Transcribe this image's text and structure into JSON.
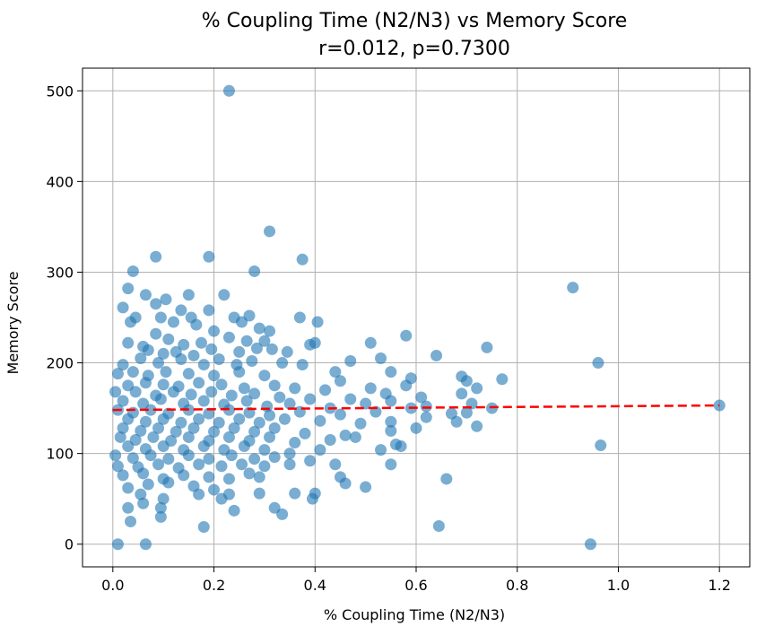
{
  "chart_data": {
    "type": "scatter",
    "title": "% Coupling Time (N2/N3) vs Memory Score",
    "subtitle": "r=0.012, p=0.7300",
    "xlabel": "% Coupling Time (N2/N3)",
    "ylabel": "Memory Score",
    "xlim": [
      -0.06,
      1.26
    ],
    "ylim": [
      -25,
      525
    ],
    "xticks": [
      0.0,
      0.2,
      0.4,
      0.6,
      0.8,
      1.0,
      1.2
    ],
    "xtick_labels": [
      "0.0",
      "0.2",
      "0.4",
      "0.6",
      "0.8",
      "1.0",
      "1.2"
    ],
    "yticks": [
      0,
      100,
      200,
      300,
      400,
      500
    ],
    "ytick_labels": [
      "0",
      "100",
      "200",
      "300",
      "400",
      "500"
    ],
    "grid": true,
    "colors": {
      "points": "#1f77b4",
      "trend": "#ff0000"
    },
    "trend_line": {
      "style": "dashed",
      "x": [
        0.0,
        1.2
      ],
      "y": [
        148,
        153
      ]
    },
    "points": [
      [
        0.23,
        500
      ],
      [
        0.31,
        345
      ],
      [
        0.085,
        317
      ],
      [
        0.19,
        317
      ],
      [
        0.375,
        314
      ],
      [
        0.04,
        301
      ],
      [
        0.28,
        301
      ],
      [
        0.91,
        283
      ],
      [
        0.03,
        282
      ],
      [
        0.065,
        275
      ],
      [
        0.15,
        275
      ],
      [
        0.22,
        275
      ],
      [
        0.105,
        270
      ],
      [
        0.085,
        265
      ],
      [
        0.02,
        261
      ],
      [
        0.135,
        258
      ],
      [
        0.19,
        258
      ],
      [
        0.045,
        250
      ],
      [
        0.095,
        250
      ],
      [
        0.155,
        250
      ],
      [
        0.24,
        250
      ],
      [
        0.27,
        252
      ],
      [
        0.37,
        250
      ],
      [
        0.035,
        245
      ],
      [
        0.12,
        245
      ],
      [
        0.165,
        242
      ],
      [
        0.255,
        245
      ],
      [
        0.29,
        238
      ],
      [
        0.405,
        245
      ],
      [
        0.085,
        232
      ],
      [
        0.2,
        235
      ],
      [
        0.31,
        235
      ],
      [
        0.58,
        230
      ],
      [
        0.03,
        222
      ],
      [
        0.06,
        218
      ],
      [
        0.11,
        226
      ],
      [
        0.14,
        220
      ],
      [
        0.175,
        222
      ],
      [
        0.23,
        228
      ],
      [
        0.265,
        224
      ],
      [
        0.3,
        224
      ],
      [
        0.39,
        220
      ],
      [
        0.4,
        222
      ],
      [
        0.51,
        222
      ],
      [
        0.07,
        214
      ],
      [
        0.1,
        210
      ],
      [
        0.125,
        212
      ],
      [
        0.16,
        208
      ],
      [
        0.195,
        215
      ],
      [
        0.25,
        212
      ],
      [
        0.285,
        216
      ],
      [
        0.315,
        215
      ],
      [
        0.345,
        212
      ],
      [
        0.74,
        217
      ],
      [
        0.64,
        208
      ],
      [
        0.02,
        198
      ],
      [
        0.055,
        205
      ],
      [
        0.09,
        200
      ],
      [
        0.135,
        204
      ],
      [
        0.18,
        198
      ],
      [
        0.21,
        204
      ],
      [
        0.245,
        198
      ],
      [
        0.275,
        202
      ],
      [
        0.335,
        200
      ],
      [
        0.375,
        198
      ],
      [
        0.47,
        202
      ],
      [
        0.53,
        205
      ],
      [
        0.96,
        200
      ],
      [
        0.44,
        190
      ],
      [
        0.55,
        190
      ],
      [
        0.69,
        185
      ],
      [
        0.77,
        182
      ],
      [
        0.01,
        188
      ],
      [
        0.04,
        190
      ],
      [
        0.07,
        186
      ],
      [
        0.105,
        190
      ],
      [
        0.15,
        188
      ],
      [
        0.2,
        186
      ],
      [
        0.25,
        190
      ],
      [
        0.3,
        186
      ],
      [
        0.45,
        180
      ],
      [
        0.59,
        183
      ],
      [
        0.7,
        180
      ],
      [
        0.03,
        175
      ],
      [
        0.065,
        178
      ],
      [
        0.1,
        176
      ],
      [
        0.13,
        174
      ],
      [
        0.17,
        178
      ],
      [
        0.215,
        176
      ],
      [
        0.26,
        172
      ],
      [
        0.32,
        175
      ],
      [
        0.36,
        172
      ],
      [
        0.42,
        170
      ],
      [
        0.51,
        172
      ],
      [
        0.58,
        175
      ],
      [
        0.005,
        168
      ],
      [
        0.045,
        168
      ],
      [
        0.085,
        164
      ],
      [
        0.12,
        168
      ],
      [
        0.155,
        165
      ],
      [
        0.195,
        168
      ],
      [
        0.235,
        164
      ],
      [
        0.28,
        166
      ],
      [
        0.33,
        162
      ],
      [
        0.39,
        160
      ],
      [
        0.47,
        160
      ],
      [
        0.54,
        166
      ],
      [
        0.61,
        162
      ],
      [
        0.69,
        166
      ],
      [
        0.72,
        172
      ],
      [
        0.02,
        158
      ],
      [
        0.06,
        155
      ],
      [
        0.095,
        160
      ],
      [
        0.14,
        155
      ],
      [
        0.18,
        158
      ],
      [
        0.22,
        154
      ],
      [
        0.265,
        158
      ],
      [
        0.305,
        152
      ],
      [
        0.35,
        155
      ],
      [
        0.43,
        150
      ],
      [
        0.5,
        155
      ],
      [
        0.55,
        158
      ],
      [
        0.62,
        152
      ],
      [
        0.71,
        155
      ],
      [
        0.75,
        150
      ],
      [
        0.01,
        148
      ],
      [
        0.04,
        145
      ],
      [
        0.075,
        148
      ],
      [
        0.11,
        144
      ],
      [
        0.15,
        148
      ],
      [
        0.19,
        144
      ],
      [
        0.23,
        148
      ],
      [
        0.27,
        145
      ],
      [
        0.31,
        142
      ],
      [
        0.37,
        146
      ],
      [
        0.45,
        143
      ],
      [
        0.52,
        146
      ],
      [
        0.59,
        150
      ],
      [
        0.67,
        144
      ],
      [
        0.7,
        145
      ],
      [
        0.03,
        138
      ],
      [
        0.065,
        135
      ],
      [
        0.1,
        138
      ],
      [
        0.135,
        134
      ],
      [
        0.17,
        138
      ],
      [
        0.21,
        134
      ],
      [
        0.25,
        138
      ],
      [
        0.29,
        134
      ],
      [
        0.34,
        138
      ],
      [
        0.41,
        136
      ],
      [
        0.49,
        133
      ],
      [
        0.55,
        135
      ],
      [
        0.6,
        128
      ],
      [
        0.68,
        135
      ],
      [
        0.72,
        130
      ],
      [
        0.02,
        128
      ],
      [
        0.055,
        125
      ],
      [
        0.09,
        128
      ],
      [
        0.125,
        124
      ],
      [
        0.16,
        128
      ],
      [
        0.2,
        124
      ],
      [
        0.24,
        128
      ],
      [
        0.28,
        124
      ],
      [
        0.32,
        128
      ],
      [
        0.38,
        122
      ],
      [
        0.46,
        120
      ],
      [
        0.55,
        125
      ],
      [
        0.62,
        140
      ],
      [
        0.015,
        118
      ],
      [
        0.045,
        115
      ],
      [
        0.08,
        118
      ],
      [
        0.115,
        114
      ],
      [
        0.15,
        118
      ],
      [
        0.19,
        114
      ],
      [
        0.23,
        118
      ],
      [
        0.27,
        114
      ],
      [
        0.31,
        118
      ],
      [
        0.36,
        112
      ],
      [
        0.43,
        115
      ],
      [
        0.56,
        110
      ],
      [
        0.965,
        109
      ],
      [
        0.03,
        108
      ],
      [
        0.065,
        105
      ],
      [
        0.1,
        108
      ],
      [
        0.14,
        104
      ],
      [
        0.18,
        108
      ],
      [
        0.22,
        104
      ],
      [
        0.26,
        108
      ],
      [
        0.3,
        104
      ],
      [
        0.35,
        100
      ],
      [
        0.41,
        104
      ],
      [
        0.48,
        118
      ],
      [
        0.57,
        108
      ],
      [
        0.005,
        98
      ],
      [
        0.04,
        95
      ],
      [
        0.075,
        98
      ],
      [
        0.11,
        94
      ],
      [
        0.15,
        98
      ],
      [
        0.19,
        94
      ],
      [
        0.235,
        98
      ],
      [
        0.28,
        94
      ],
      [
        0.32,
        96
      ],
      [
        0.39,
        92
      ],
      [
        0.53,
        104
      ],
      [
        0.01,
        86
      ],
      [
        0.05,
        85
      ],
      [
        0.09,
        88
      ],
      [
        0.13,
        84
      ],
      [
        0.17,
        88
      ],
      [
        0.215,
        86
      ],
      [
        0.255,
        88
      ],
      [
        0.3,
        86
      ],
      [
        0.35,
        88
      ],
      [
        0.44,
        88
      ],
      [
        0.55,
        88
      ],
      [
        0.02,
        76
      ],
      [
        0.06,
        78
      ],
      [
        0.1,
        72
      ],
      [
        0.14,
        76
      ],
      [
        0.19,
        74
      ],
      [
        0.23,
        72
      ],
      [
        0.27,
        78
      ],
      [
        0.29,
        74
      ],
      [
        0.45,
        74
      ],
      [
        0.66,
        72
      ],
      [
        0.03,
        62
      ],
      [
        0.07,
        66
      ],
      [
        0.11,
        68
      ],
      [
        0.16,
        64
      ],
      [
        0.2,
        60
      ],
      [
        0.46,
        67
      ],
      [
        0.5,
        63
      ],
      [
        0.055,
        55
      ],
      [
        0.1,
        50
      ],
      [
        0.17,
        55
      ],
      [
        0.215,
        50
      ],
      [
        0.23,
        55
      ],
      [
        0.29,
        56
      ],
      [
        0.36,
        56
      ],
      [
        0.4,
        56
      ],
      [
        0.395,
        50
      ],
      [
        0.03,
        40
      ],
      [
        0.06,
        45
      ],
      [
        0.095,
        40
      ],
      [
        0.32,
        40
      ],
      [
        0.035,
        25
      ],
      [
        0.095,
        30
      ],
      [
        0.24,
        37
      ],
      [
        0.335,
        33
      ],
      [
        0.18,
        19
      ],
      [
        0.645,
        20
      ],
      [
        0.01,
        0
      ],
      [
        0.065,
        0
      ],
      [
        0.945,
        0
      ],
      [
        1.2,
        153
      ]
    ]
  }
}
